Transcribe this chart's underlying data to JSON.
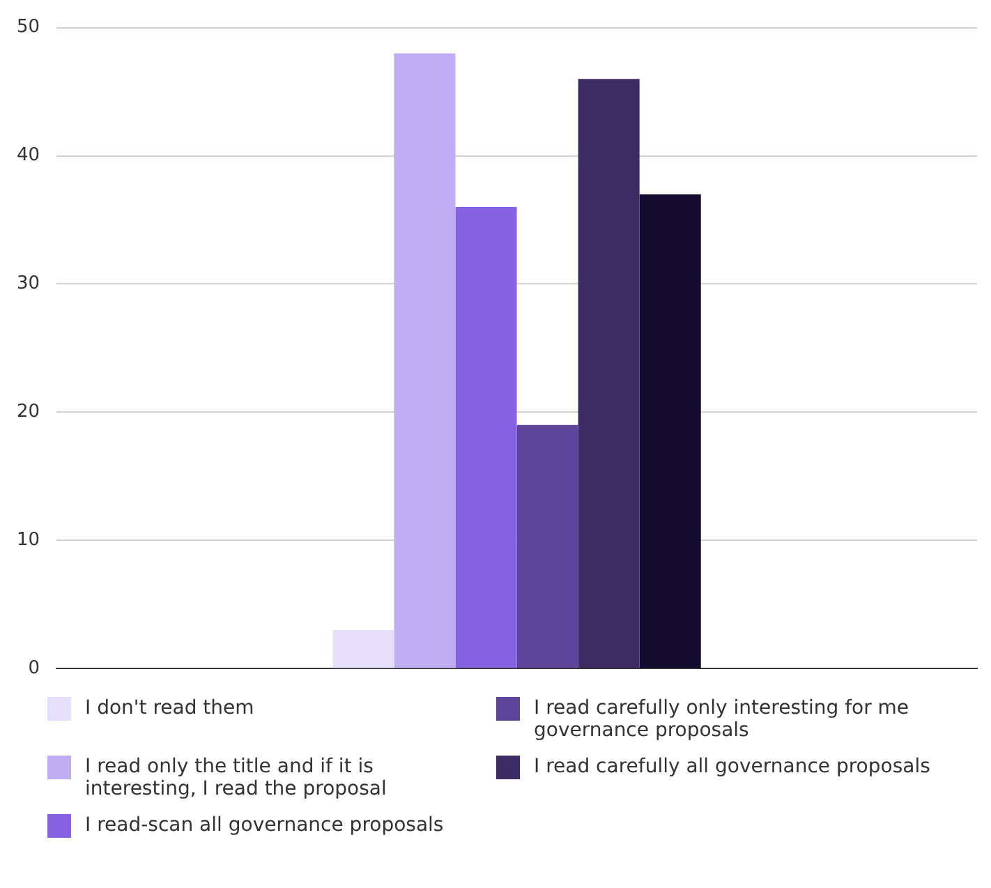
{
  "chart_data": {
    "type": "bar",
    "categories": [
      null
    ],
    "series": [
      {
        "name": "I don't read them",
        "color": "#e6dffb",
        "values": [
          3
        ]
      },
      {
        "name": "I read only the title and if it is interesting, I read the proposal",
        "color": "#c0aef5",
        "values": [
          48
        ]
      },
      {
        "name": "I read-scan all governance proposals",
        "color": "#8563e0",
        "values": [
          36
        ]
      },
      {
        "name": "I read carefully only interesting for me governance proposals",
        "color": "#5e4599",
        "values": [
          19
        ]
      },
      {
        "name": "I read carefully all governance proposals",
        "color": "#3d2b63",
        "values": [
          46
        ]
      },
      {
        "color": "#140c2e",
        "values": [
          37
        ]
      }
    ],
    "ylim": [
      0,
      50
    ],
    "yticks": [
      0,
      10,
      20,
      30,
      40,
      50
    ],
    "grid": "y",
    "legend": "bottom"
  }
}
